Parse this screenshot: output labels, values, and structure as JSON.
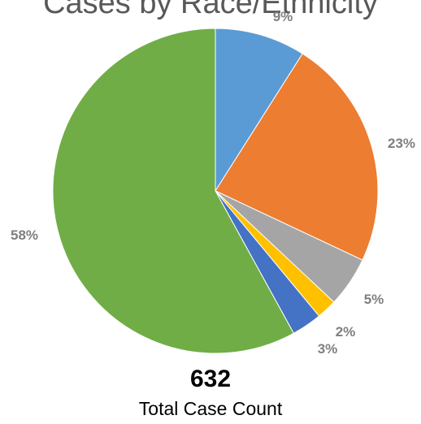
{
  "chart_data": {
    "type": "pie",
    "title": "Cases by Race/Ethnicity",
    "slices": [
      {
        "label": "9%",
        "value": 9,
        "color": "#5b9bd5"
      },
      {
        "label": "23%",
        "value": 23,
        "color": "#ed7d31"
      },
      {
        "label": "5%",
        "value": 5,
        "color": "#a5a5a5"
      },
      {
        "label": "2%",
        "value": 2,
        "color": "#ffc000"
      },
      {
        "label": "3%",
        "value": 3,
        "color": "#4472c4"
      },
      {
        "label": "58%",
        "value": 58,
        "color": "#70ad47"
      }
    ]
  },
  "footer": {
    "total_value": "632",
    "total_label": "Total Case Count"
  }
}
